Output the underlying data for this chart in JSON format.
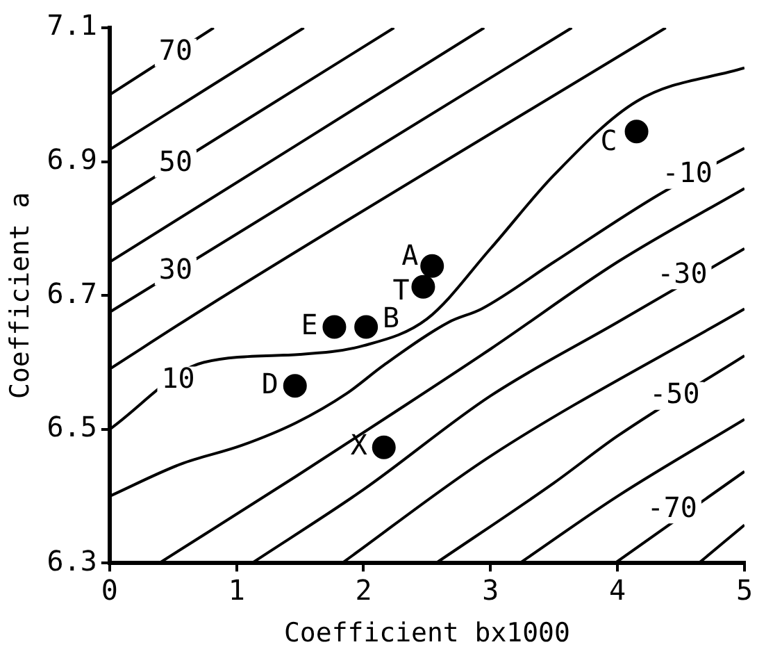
{
  "chart_data": {
    "type": "scatter",
    "xlabel": "Coefficient bx1000",
    "ylabel": "Coefficient a",
    "xlim": [
      0,
      5
    ],
    "xticks": [
      0,
      1,
      2,
      3,
      4,
      5
    ],
    "ylim": [
      6.3,
      7.1
    ],
    "yticks": [
      6.3,
      6.5,
      6.7,
      6.9,
      7.1
    ],
    "marker": "circle",
    "legend": false,
    "series": [
      {
        "type": "line",
        "marker": "none",
        "color": "#000000",
        "x": [
          0,
          0.82
        ],
        "values": [
          7.0,
          7.1
        ]
      },
      {
        "type": "line",
        "marker": "none",
        "color": "#000000",
        "x": [
          0,
          1.53
        ],
        "values": [
          6.918,
          7.1
        ]
      },
      {
        "type": "line",
        "marker": "none",
        "color": "#000000",
        "x": [
          0,
          2.24
        ],
        "values": [
          6.835,
          7.1
        ]
      },
      {
        "type": "line",
        "marker": "none",
        "color": "#000000",
        "x": [
          0,
          2.95
        ],
        "values": [
          6.75,
          7.1
        ]
      },
      {
        "type": "line",
        "marker": "none",
        "color": "#000000",
        "x": [
          0,
          3.64
        ],
        "values": [
          6.675,
          7.1
        ]
      },
      {
        "type": "line",
        "marker": "none",
        "color": "#000000",
        "x": [
          0,
          0.74,
          4.38
        ],
        "values": [
          6.59,
          6.68,
          7.1
        ]
      },
      {
        "type": "line",
        "marker": "none",
        "color": "#000000",
        "x": [
          0,
          0.74,
          1.5,
          2.0,
          2.5,
          3.0,
          3.5,
          4.15,
          5
        ],
        "values": [
          6.5,
          6.6,
          6.612,
          6.625,
          6.665,
          6.77,
          6.88,
          6.99,
          7.04
        ]
      },
      {
        "type": "line",
        "marker": "none",
        "color": "#000000",
        "x": [
          0,
          0.56,
          1.04,
          1.47,
          1.87,
          2.16,
          2.67,
          2.93,
          3.5,
          4.32,
          5
        ],
        "values": [
          6.4,
          6.448,
          6.476,
          6.51,
          6.554,
          6.596,
          6.66,
          6.68,
          6.75,
          6.85,
          6.92
        ]
      },
      {
        "type": "line",
        "marker": "none",
        "color": "#000000",
        "x": [
          0.39,
          1.47,
          2.2,
          3,
          4,
          5
        ],
        "values": [
          6.3,
          6.43,
          6.52,
          6.62,
          6.75,
          6.86
        ]
      },
      {
        "type": "line",
        "marker": "none",
        "color": "#000000",
        "x": [
          1.12,
          2,
          3,
          4,
          5
        ],
        "values": [
          6.3,
          6.41,
          6.55,
          6.66,
          6.77
        ]
      },
      {
        "type": "line",
        "marker": "none",
        "color": "#000000",
        "x": [
          1.83,
          3,
          5
        ],
        "values": [
          6.3,
          6.46,
          6.68
        ]
      },
      {
        "type": "line",
        "marker": "none",
        "color": "#000000",
        "x": [
          2.57,
          3.5,
          4.0,
          5
        ],
        "values": [
          6.3,
          6.42,
          6.49,
          6.61
        ]
      },
      {
        "type": "line",
        "marker": "none",
        "color": "#000000",
        "x": [
          3.23,
          4,
          5
        ],
        "values": [
          6.3,
          6.4,
          6.515
        ]
      },
      {
        "type": "line",
        "marker": "none",
        "color": "#000000",
        "x": [
          3.98,
          5
        ],
        "values": [
          6.3,
          6.437
        ]
      },
      {
        "type": "line",
        "marker": "none",
        "color": "#000000",
        "x": [
          4.64,
          5
        ],
        "values": [
          6.3,
          6.357
        ]
      },
      {
        "type": "scatter",
        "name": "A",
        "color": "#000000",
        "x": [
          2.54
        ],
        "values": [
          6.744
        ]
      },
      {
        "type": "scatter",
        "name": "T",
        "color": "#000000",
        "x": [
          2.47
        ],
        "values": [
          6.713
        ]
      },
      {
        "type": "scatter",
        "name": "E",
        "color": "#000000",
        "x": [
          1.77
        ],
        "values": [
          6.653
        ]
      },
      {
        "type": "scatter",
        "name": "B",
        "color": "#000000",
        "x": [
          2.02
        ],
        "values": [
          6.653
        ]
      },
      {
        "type": "scatter",
        "name": "D",
        "color": "#000000",
        "x": [
          1.46
        ],
        "values": [
          6.565
        ]
      },
      {
        "type": "scatter",
        "name": "X",
        "color": "#000000",
        "x": [
          2.16
        ],
        "values": [
          6.473
        ]
      },
      {
        "type": "scatter",
        "name": "C",
        "color": "#000000",
        "x": [
          4.15
        ],
        "values": [
          6.945
        ]
      }
    ],
    "annotations": [
      {
        "text": "70",
        "x": 0.52,
        "y": 7.063
      },
      {
        "text": "50",
        "x": 0.52,
        "y": 6.897
      },
      {
        "text": "30",
        "x": 0.52,
        "y": 6.736
      },
      {
        "text": "10",
        "x": 0.54,
        "y": 6.573
      },
      {
        "text": "-10",
        "x": 4.55,
        "y": 6.88
      },
      {
        "text": "-30",
        "x": 4.51,
        "y": 6.73
      },
      {
        "text": "-50",
        "x": 4.45,
        "y": 6.55
      },
      {
        "text": "-70",
        "x": 4.43,
        "y": 6.38
      }
    ]
  }
}
